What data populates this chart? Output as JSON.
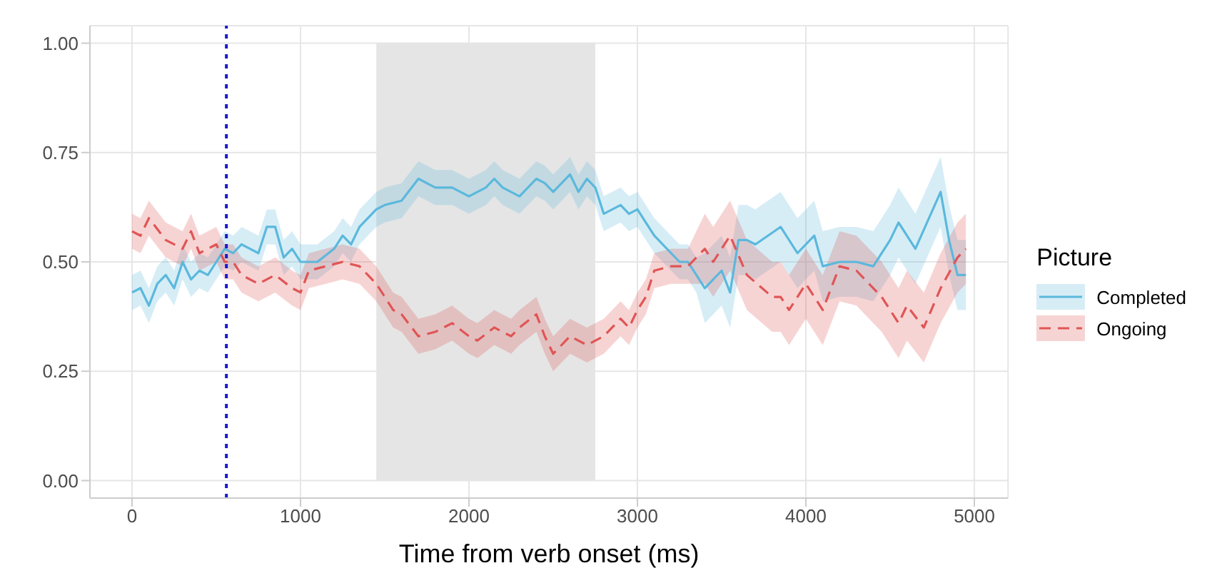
{
  "chart_data": {
    "type": "line",
    "xlabel": "Time from verb onset (ms)",
    "legend_title": "Picture",
    "legend": "right",
    "grid": true,
    "xlim": [
      -250,
      5200
    ],
    "xticks": [
      0,
      1000,
      2000,
      3000,
      4000,
      5000
    ],
    "ylim": [
      -0.04,
      1.04
    ],
    "yticks": [
      {
        "value": 0,
        "label": "0.00"
      },
      {
        "value": 0.25,
        "label": "0.25"
      },
      {
        "value": 0.5,
        "label": "0.50"
      },
      {
        "value": 0.75,
        "label": "0.75"
      },
      {
        "value": 1,
        "label": "1.00"
      }
    ],
    "ref_lines": [
      {
        "axis": "x",
        "value": 560,
        "color": "#1a1acc",
        "line_style": "dotted"
      }
    ],
    "bands": [
      {
        "axis": "x",
        "from": 1450,
        "to": 2750,
        "color": "#e5e5e5"
      }
    ],
    "series": [
      {
        "name": "Completed",
        "color": "#5bb8dc",
        "line_style": "solid",
        "x": [
          0,
          50,
          100,
          150,
          200,
          250,
          300,
          350,
          400,
          450,
          500,
          550,
          600,
          650,
          700,
          750,
          800,
          850,
          900,
          950,
          1000,
          1050,
          1100,
          1200,
          1250,
          1300,
          1350,
          1450,
          1500,
          1600,
          1700,
          1800,
          1900,
          2000,
          2100,
          2150,
          2200,
          2300,
          2400,
          2450,
          2500,
          2600,
          2650,
          2700,
          2750,
          2800,
          2900,
          2950,
          3000,
          3050,
          3100,
          3200,
          3250,
          3300,
          3350,
          3400,
          3500,
          3550,
          3600,
          3650,
          3700,
          3850,
          3950,
          4050,
          4100,
          4200,
          4300,
          4400,
          4500,
          4550,
          4650,
          4800,
          4850,
          4900,
          4950
        ],
        "values": [
          0.43,
          0.44,
          0.4,
          0.45,
          0.47,
          0.44,
          0.5,
          0.46,
          0.48,
          0.47,
          0.5,
          0.53,
          0.52,
          0.54,
          0.53,
          0.52,
          0.58,
          0.58,
          0.51,
          0.53,
          0.5,
          0.5,
          0.5,
          0.53,
          0.56,
          0.54,
          0.58,
          0.62,
          0.63,
          0.64,
          0.69,
          0.67,
          0.67,
          0.65,
          0.67,
          0.69,
          0.67,
          0.65,
          0.69,
          0.68,
          0.66,
          0.7,
          0.66,
          0.69,
          0.67,
          0.61,
          0.63,
          0.61,
          0.62,
          0.59,
          0.56,
          0.52,
          0.5,
          0.5,
          0.47,
          0.44,
          0.48,
          0.43,
          0.55,
          0.55,
          0.54,
          0.58,
          0.52,
          0.56,
          0.49,
          0.5,
          0.5,
          0.49,
          0.55,
          0.59,
          0.53,
          0.66,
          0.55,
          0.47,
          0.47
        ],
        "lower": [
          0.39,
          0.4,
          0.36,
          0.41,
          0.43,
          0.4,
          0.46,
          0.42,
          0.44,
          0.43,
          0.46,
          0.49,
          0.48,
          0.5,
          0.49,
          0.48,
          0.54,
          0.54,
          0.47,
          0.49,
          0.46,
          0.46,
          0.46,
          0.49,
          0.52,
          0.5,
          0.54,
          0.58,
          0.59,
          0.6,
          0.65,
          0.63,
          0.63,
          0.61,
          0.63,
          0.65,
          0.63,
          0.61,
          0.65,
          0.64,
          0.62,
          0.66,
          0.62,
          0.65,
          0.63,
          0.57,
          0.59,
          0.57,
          0.58,
          0.55,
          0.52,
          0.48,
          0.46,
          0.46,
          0.43,
          0.36,
          0.4,
          0.35,
          0.47,
          0.47,
          0.46,
          0.5,
          0.44,
          0.48,
          0.41,
          0.42,
          0.42,
          0.41,
          0.47,
          0.51,
          0.45,
          0.58,
          0.47,
          0.39,
          0.39
        ],
        "upper": [
          0.47,
          0.48,
          0.44,
          0.49,
          0.51,
          0.48,
          0.54,
          0.5,
          0.52,
          0.51,
          0.54,
          0.57,
          0.56,
          0.58,
          0.57,
          0.56,
          0.62,
          0.62,
          0.55,
          0.57,
          0.54,
          0.54,
          0.54,
          0.57,
          0.6,
          0.58,
          0.62,
          0.66,
          0.67,
          0.68,
          0.73,
          0.71,
          0.71,
          0.69,
          0.71,
          0.73,
          0.71,
          0.69,
          0.73,
          0.72,
          0.7,
          0.74,
          0.7,
          0.73,
          0.71,
          0.65,
          0.67,
          0.65,
          0.66,
          0.63,
          0.6,
          0.56,
          0.54,
          0.54,
          0.51,
          0.52,
          0.56,
          0.51,
          0.63,
          0.63,
          0.62,
          0.66,
          0.6,
          0.64,
          0.57,
          0.58,
          0.58,
          0.57,
          0.63,
          0.67,
          0.61,
          0.74,
          0.63,
          0.55,
          0.55
        ]
      },
      {
        "name": "Ongoing",
        "color": "#e05555",
        "line_style": "dashed",
        "x": [
          0,
          50,
          100,
          200,
          300,
          350,
          400,
          500,
          550,
          600,
          650,
          750,
          850,
          950,
          1000,
          1050,
          1150,
          1250,
          1350,
          1450,
          1550,
          1600,
          1700,
          1800,
          1900,
          2000,
          2050,
          2150,
          2250,
          2300,
          2400,
          2450,
          2500,
          2600,
          2700,
          2800,
          2850,
          2900,
          2950,
          3000,
          3050,
          3100,
          3200,
          3300,
          3400,
          3450,
          3550,
          3650,
          3800,
          3850,
          3900,
          4000,
          4100,
          4200,
          4300,
          4400,
          4450,
          4550,
          4600,
          4700,
          4800,
          4900,
          4950
        ],
        "values": [
          0.57,
          0.56,
          0.6,
          0.55,
          0.53,
          0.57,
          0.52,
          0.54,
          0.5,
          0.5,
          0.47,
          0.45,
          0.47,
          0.44,
          0.43,
          0.48,
          0.49,
          0.5,
          0.49,
          0.45,
          0.39,
          0.38,
          0.33,
          0.34,
          0.36,
          0.33,
          0.32,
          0.35,
          0.33,
          0.35,
          0.38,
          0.33,
          0.29,
          0.33,
          0.31,
          0.33,
          0.35,
          0.37,
          0.35,
          0.39,
          0.42,
          0.48,
          0.49,
          0.49,
          0.53,
          0.5,
          0.56,
          0.47,
          0.42,
          0.42,
          0.39,
          0.45,
          0.39,
          0.49,
          0.48,
          0.44,
          0.42,
          0.36,
          0.4,
          0.35,
          0.44,
          0.51,
          0.53
        ],
        "lower": [
          0.53,
          0.52,
          0.56,
          0.51,
          0.49,
          0.53,
          0.48,
          0.5,
          0.46,
          0.46,
          0.43,
          0.41,
          0.43,
          0.4,
          0.39,
          0.44,
          0.45,
          0.46,
          0.45,
          0.41,
          0.35,
          0.34,
          0.29,
          0.3,
          0.32,
          0.29,
          0.28,
          0.31,
          0.29,
          0.31,
          0.34,
          0.29,
          0.25,
          0.29,
          0.27,
          0.29,
          0.31,
          0.33,
          0.31,
          0.35,
          0.38,
          0.44,
          0.45,
          0.45,
          0.45,
          0.42,
          0.48,
          0.39,
          0.34,
          0.34,
          0.31,
          0.37,
          0.31,
          0.41,
          0.4,
          0.36,
          0.34,
          0.28,
          0.32,
          0.27,
          0.36,
          0.43,
          0.45
        ],
        "upper": [
          0.61,
          0.6,
          0.64,
          0.59,
          0.57,
          0.61,
          0.56,
          0.58,
          0.54,
          0.54,
          0.51,
          0.49,
          0.51,
          0.48,
          0.47,
          0.52,
          0.53,
          0.54,
          0.53,
          0.49,
          0.43,
          0.42,
          0.37,
          0.38,
          0.4,
          0.37,
          0.36,
          0.39,
          0.37,
          0.39,
          0.42,
          0.37,
          0.33,
          0.37,
          0.35,
          0.37,
          0.39,
          0.41,
          0.39,
          0.43,
          0.46,
          0.52,
          0.53,
          0.53,
          0.61,
          0.58,
          0.64,
          0.55,
          0.5,
          0.5,
          0.47,
          0.53,
          0.47,
          0.57,
          0.56,
          0.52,
          0.5,
          0.44,
          0.48,
          0.43,
          0.52,
          0.59,
          0.61
        ]
      }
    ]
  }
}
